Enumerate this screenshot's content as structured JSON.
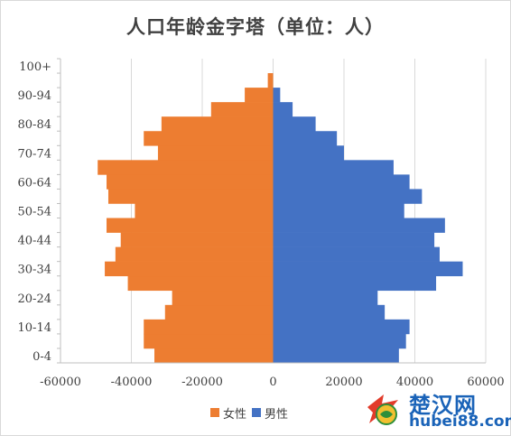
{
  "chart_data": {
    "type": "bar",
    "orientation": "horizontal",
    "layout": "population-pyramid",
    "title": "人口年龄金字塔（单位：人）",
    "categories": [
      "0-4",
      "5-9",
      "10-14",
      "15-19",
      "20-24",
      "25-29",
      "30-34",
      "35-39",
      "40-44",
      "45-49",
      "50-54",
      "55-59",
      "60-64",
      "65-69",
      "70-74",
      "75-79",
      "80-84",
      "85-89",
      "90-94",
      "95-99",
      "100+"
    ],
    "category_tick_labels": [
      "0-4",
      "10-14",
      "20-24",
      "30-34",
      "40-44",
      "50-54",
      "60-64",
      "70-74",
      "80-84",
      "90-94",
      "100+"
    ],
    "series": [
      {
        "name": "女性",
        "color": "#ED7D31",
        "values": [
          -33500,
          -36500,
          -36500,
          -30500,
          -28500,
          -41000,
          -47500,
          -44500,
          -43000,
          -47000,
          -39000,
          -46500,
          -47000,
          -49500,
          -32500,
          -36500,
          -31500,
          -17500,
          -8000,
          -1500,
          0
        ]
      },
      {
        "name": "男性",
        "color": "#4472C4",
        "values": [
          35500,
          37500,
          38500,
          31500,
          29500,
          46000,
          53500,
          47000,
          45500,
          48500,
          37000,
          42000,
          38500,
          34000,
          20000,
          18000,
          12000,
          5500,
          2000,
          0,
          0
        ]
      }
    ],
    "xlim": [
      -60000,
      60000
    ],
    "x_ticks": [
      -60000,
      -40000,
      -20000,
      0,
      20000,
      40000,
      60000
    ],
    "x_tick_labels": [
      "-60000",
      "-40000",
      "-20000",
      "0",
      "20000",
      "40000",
      "60000"
    ],
    "grid": "vertical",
    "legend": "bottom"
  },
  "watermark": {
    "name": "楚汉网",
    "url": "hubei88.com"
  }
}
